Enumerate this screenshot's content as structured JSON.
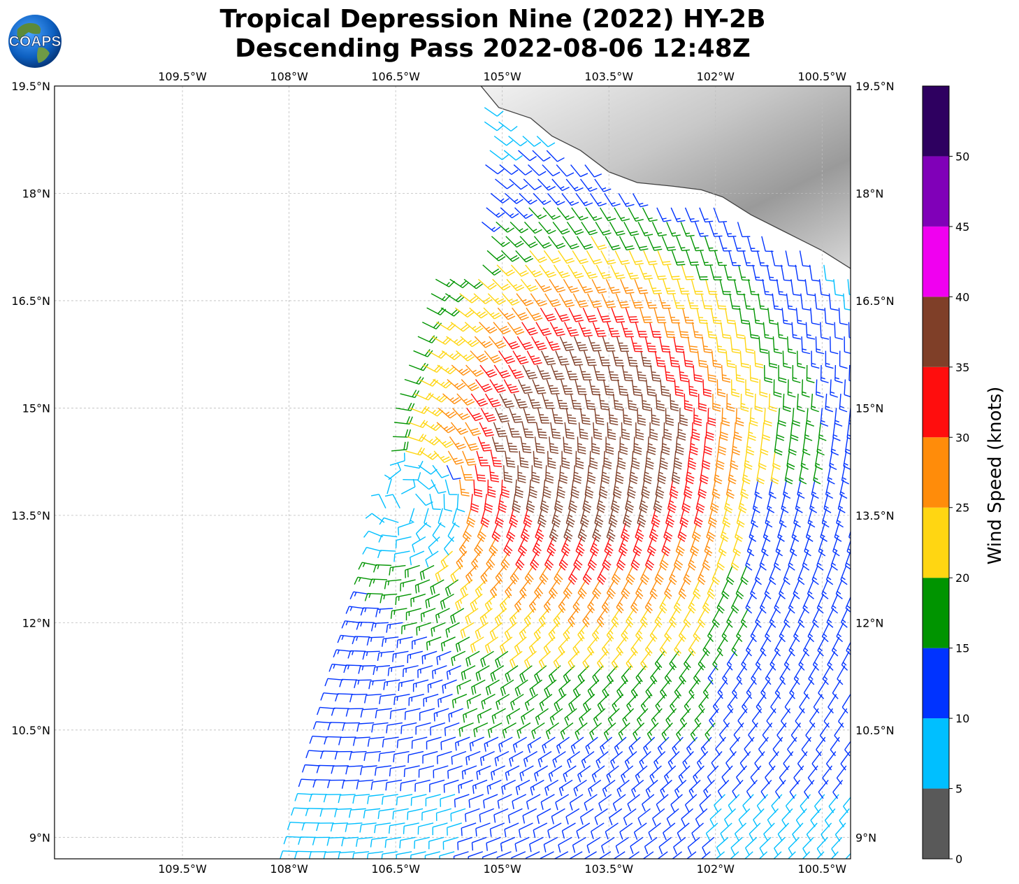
{
  "title": {
    "line1": "Tropical Depression Nine (2022) HY-2B",
    "line2": "Descending Pass 2022-08-06 12:48Z"
  },
  "logo": {
    "text": "COAPS",
    "icon": "globe-logo-icon"
  },
  "map": {
    "extent": {
      "lon_west": -111.3,
      "lon_east": -100.1,
      "lat_south": 8.7,
      "lat_north": 19.5
    },
    "lon_ticks": [
      {
        "value": -109.5,
        "label": "109.5°W"
      },
      {
        "value": -108.0,
        "label": "108°W"
      },
      {
        "value": -106.5,
        "label": "106.5°W"
      },
      {
        "value": -105.0,
        "label": "105°W"
      },
      {
        "value": -103.5,
        "label": "103.5°W"
      },
      {
        "value": -102.0,
        "label": "102°W"
      },
      {
        "value": -100.5,
        "label": "100.5°W"
      }
    ],
    "lat_ticks": [
      {
        "value": 19.5,
        "label": "19.5°N"
      },
      {
        "value": 18.0,
        "label": "18°N"
      },
      {
        "value": 16.5,
        "label": "16.5°N"
      },
      {
        "value": 15.0,
        "label": "15°N"
      },
      {
        "value": 13.5,
        "label": "13.5°N"
      },
      {
        "value": 12.0,
        "label": "12°N"
      },
      {
        "value": 10.5,
        "label": "10.5°N"
      },
      {
        "value": 9.0,
        "label": "9°N"
      }
    ],
    "gridlines": true,
    "land_region": "Mexico coastline (top-right)",
    "land_color": "#d0d0d0",
    "coast_color": "#404040"
  },
  "wind_field": {
    "center": {
      "lon": -106.3,
      "lat": 13.6
    },
    "max_wind": {
      "lon": -103.8,
      "lat": 15.0
    },
    "swath_west_edge": [
      [
        -105.25,
        19.0
      ],
      [
        -106.5,
        15.0
      ],
      [
        -106.7,
        13.0
      ],
      [
        -107.3,
        11.0
      ],
      [
        -107.9,
        8.7
      ]
    ],
    "colors_by_speed": [
      "#595959",
      "#00bfff",
      "#0033ff",
      "#009400",
      "#ffd612",
      "#ff8c0a",
      "#ff0d0d",
      "#7f3f28",
      "#f000f0",
      "#8000b8",
      "#2e0060"
    ]
  },
  "colorbar": {
    "label": "Wind Speed (knots)",
    "min": 0,
    "max": 55,
    "tick_labels": [
      "0",
      "5",
      "10",
      "15",
      "20",
      "25",
      "30",
      "35",
      "40",
      "45",
      "50"
    ],
    "bins": [
      {
        "from": 0,
        "to": 5,
        "color": "#595959"
      },
      {
        "from": 5,
        "to": 10,
        "color": "#00bfff"
      },
      {
        "from": 10,
        "to": 15,
        "color": "#0033ff"
      },
      {
        "from": 15,
        "to": 20,
        "color": "#009400"
      },
      {
        "from": 20,
        "to": 25,
        "color": "#ffd612"
      },
      {
        "from": 25,
        "to": 30,
        "color": "#ff8c0a"
      },
      {
        "from": 30,
        "to": 35,
        "color": "#ff0d0d"
      },
      {
        "from": 35,
        "to": 40,
        "color": "#7f3f28"
      },
      {
        "from": 40,
        "to": 45,
        "color": "#f000f0"
      },
      {
        "from": 45,
        "to": 50,
        "color": "#8000b8"
      },
      {
        "from": 50,
        "to": 55,
        "color": "#2e0060"
      }
    ]
  }
}
